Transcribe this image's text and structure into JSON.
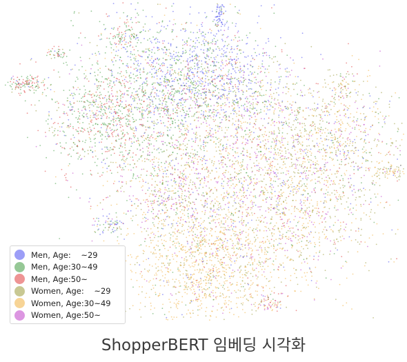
{
  "caption": "ShopperBERT 임베딩 시각화",
  "chart_data": {
    "type": "scatter",
    "title": "",
    "xlabel": "",
    "ylabel": "",
    "grid": false,
    "axes_visible": false,
    "legend_position": "bottom-left",
    "series": [
      {
        "name": "Men, Age:    ~29",
        "color": "#4b4ff0",
        "region": "upper-center"
      },
      {
        "name": "Men, Age:30~49",
        "color": "#3f9a3f",
        "region": "upper-left"
      },
      {
        "name": "Men, Age:50~",
        "color": "#e03c3c",
        "region": "left"
      },
      {
        "name": "Women, Age:    ~29",
        "color": "#9a9a3a",
        "region": "center-right"
      },
      {
        "name": "Women, Age:30~49",
        "color": "#f0b040",
        "region": "lower-center"
      },
      {
        "name": "Women, Age:50~",
        "color": "#c040c8",
        "region": "center"
      }
    ]
  }
}
